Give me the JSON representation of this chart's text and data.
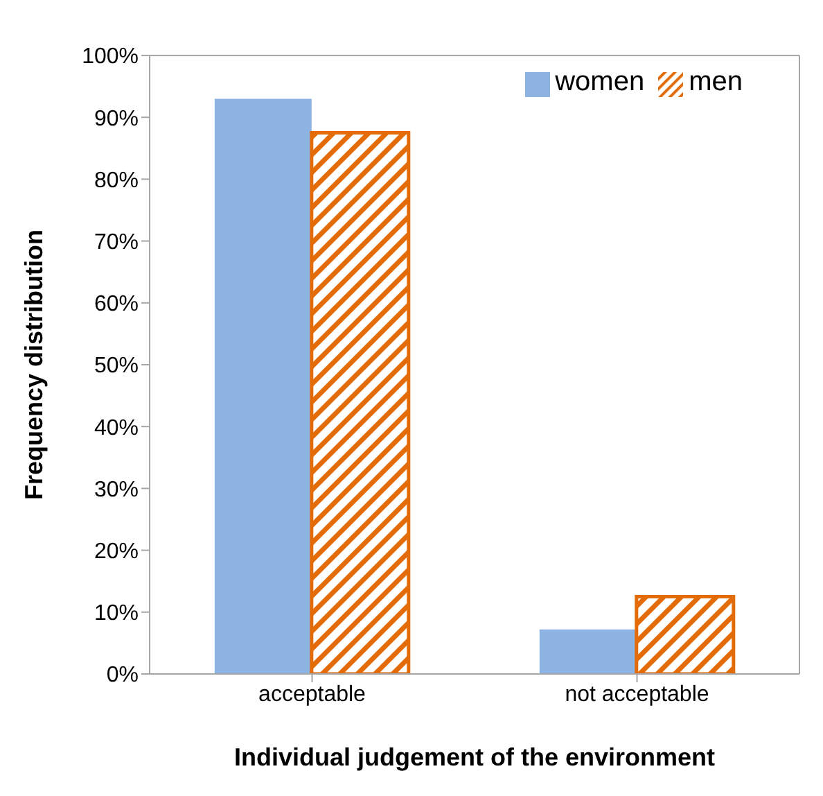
{
  "chart_data": {
    "type": "bar",
    "categories": [
      "acceptable",
      "not acceptable"
    ],
    "series": [
      {
        "name": "women",
        "color": "#8db3e2",
        "values": [
          93,
          7.2
        ]
      },
      {
        "name": "men",
        "color": "#e36c09",
        "values": [
          87.5,
          12.5
        ]
      }
    ],
    "ylim": [
      0,
      100
    ],
    "yticks": [
      {
        "value": 0,
        "label": "0%"
      },
      {
        "value": 10,
        "label": "10%"
      },
      {
        "value": 20,
        "label": "20%"
      },
      {
        "value": 30,
        "label": "30%"
      },
      {
        "value": 40,
        "label": "40%"
      },
      {
        "value": 50,
        "label": "50%"
      },
      {
        "value": 60,
        "label": "60%"
      },
      {
        "value": 70,
        "label": "70%"
      },
      {
        "value": 80,
        "label": "80%"
      },
      {
        "value": 90,
        "label": "90%"
      },
      {
        "value": 100,
        "label": "100%"
      }
    ],
    "xlabel": "Individual judgement of the environment",
    "ylabel": "Frequency distribution",
    "legend": "top right",
    "grid": false
  }
}
